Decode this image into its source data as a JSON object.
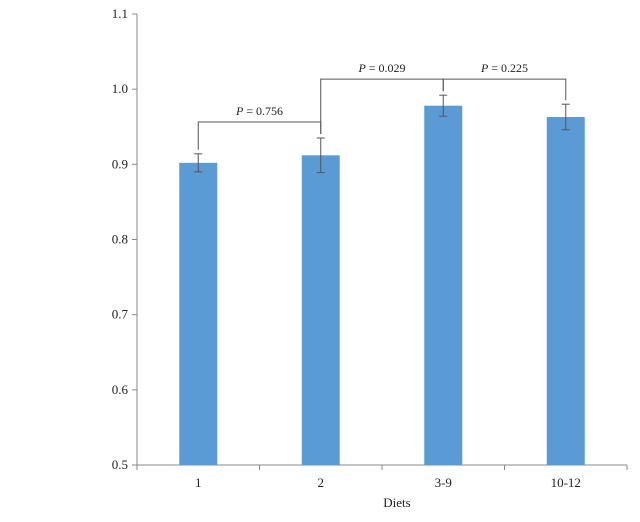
{
  "chart_data": {
    "type": "bar",
    "title": "",
    "xlabel": "Diets",
    "ylabel": "",
    "categories": [
      "1",
      "2",
      "3-9",
      "10-12"
    ],
    "values": [
      0.902,
      0.912,
      0.978,
      0.963
    ],
    "errors": [
      0.012,
      0.023,
      0.014,
      0.017
    ],
    "ylim": [
      0.5,
      1.1
    ],
    "yticks": [
      "0.5",
      "0.6",
      "0.7",
      "0.8",
      "0.9",
      "1.0",
      "1.1"
    ],
    "grid": false,
    "bar_color": "#5b9bd5",
    "comparisons": [
      {
        "from": 0,
        "to": 1,
        "p_symbol": "P",
        "p_value": " = 0.756"
      },
      {
        "from": 1,
        "to": 2,
        "p_symbol": "P",
        "p_value": " = 0.029"
      },
      {
        "from": 2,
        "to": 3,
        "p_symbol": "P",
        "p_value": " = 0.225"
      }
    ]
  }
}
